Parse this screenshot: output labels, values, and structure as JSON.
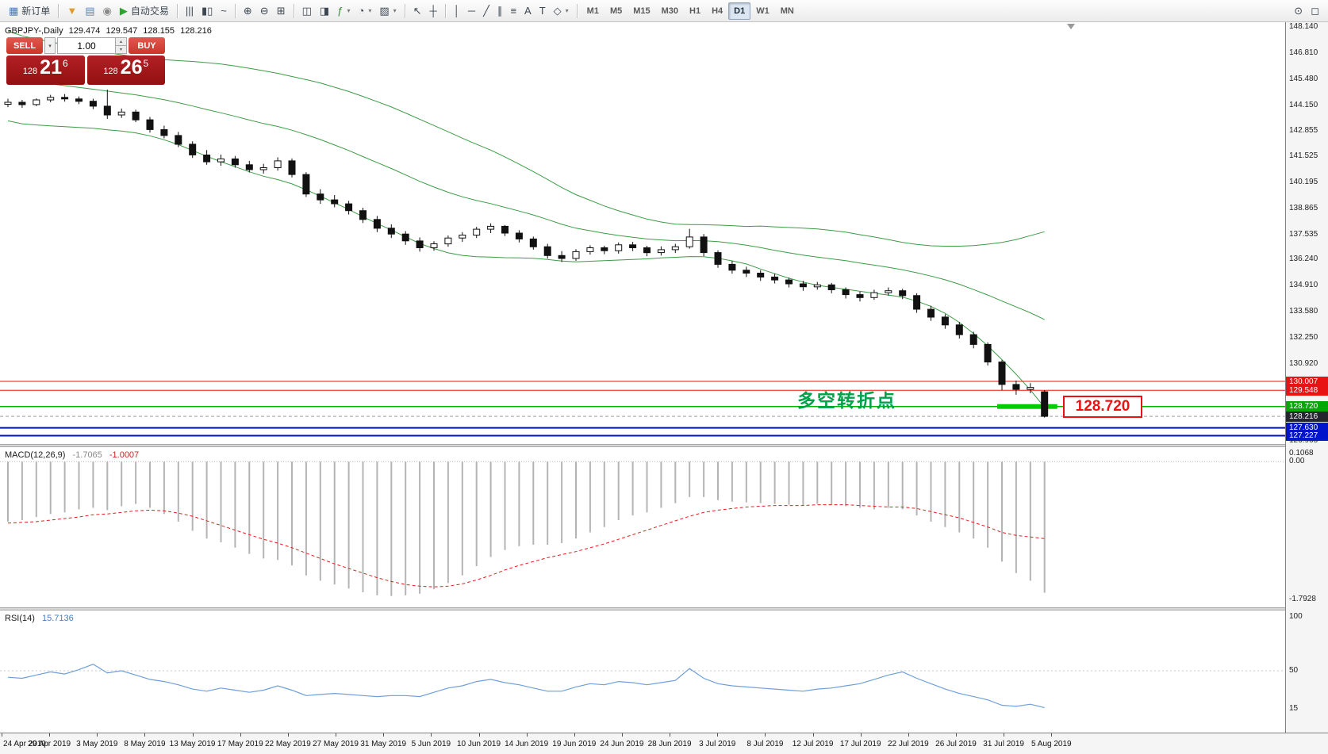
{
  "toolbar": {
    "items": [
      {
        "n": "new-order-button",
        "glyph": "▦",
        "c": "#4a7ab5",
        "label": "新订单"
      },
      {
        "sep": true
      },
      {
        "n": "market-watch-icon",
        "glyph": "▼",
        "c": "#e09a2e"
      },
      {
        "n": "data-window-icon",
        "glyph": "▤",
        "c": "#5a85b5"
      },
      {
        "n": "sound-alerts-icon",
        "glyph": "◉",
        "c": "#8a8a8a"
      },
      {
        "n": "autotrading-button",
        "glyph": "▶",
        "c": "#2ba52b",
        "label": "自动交易"
      },
      {
        "sep": true
      },
      {
        "n": "bar-chart-type-button",
        "glyph": "|||"
      },
      {
        "n": "candlestick-type-button",
        "glyph": "▮▯"
      },
      {
        "n": "line-chart-type-button",
        "glyph": "~"
      },
      {
        "sep": true
      },
      {
        "n": "zoom-in-button",
        "glyph": "⊕"
      },
      {
        "n": "zoom-out-button",
        "glyph": "⊖"
      },
      {
        "n": "tile-windows-button",
        "glyph": "⊞"
      },
      {
        "sep": true
      },
      {
        "n": "arrange-charts-button",
        "glyph": "◫"
      },
      {
        "n": "new-chart-button",
        "glyph": "◨"
      },
      {
        "n": "indicators-button",
        "glyph": "ƒ",
        "c": "#2e8b2e",
        "caret": true
      },
      {
        "n": "periods-button",
        "glyph": "◔",
        "caret": true
      },
      {
        "n": "templates-button",
        "glyph": "▨",
        "caret": true
      },
      {
        "sep": true
      },
      {
        "n": "cursor-button",
        "glyph": "↖"
      },
      {
        "n": "crosshair-button",
        "glyph": "┼"
      },
      {
        "sep": true
      },
      {
        "n": "vertical-line-button",
        "glyph": "│"
      },
      {
        "n": "horizontal-line-button",
        "glyph": "─"
      },
      {
        "n": "trendline-button",
        "glyph": "╱"
      },
      {
        "n": "channel-button",
        "glyph": "∥"
      },
      {
        "n": "fibonacci-button",
        "glyph": "≡"
      },
      {
        "n": "text-button",
        "glyph": "A"
      },
      {
        "n": "text-label-button",
        "glyph": "T"
      },
      {
        "n": "shapes-button",
        "glyph": "◇",
        "caret": true
      },
      {
        "sep": true
      }
    ],
    "timeframes": [
      {
        "label": "M1"
      },
      {
        "label": "M5"
      },
      {
        "label": "M15"
      },
      {
        "label": "M30"
      },
      {
        "label": "H1"
      },
      {
        "label": "H4"
      },
      {
        "label": "D1",
        "active": true
      },
      {
        "label": "W1"
      },
      {
        "label": "MN"
      }
    ],
    "right_items": [
      {
        "n": "search-symbol-button",
        "glyph": "⊙"
      },
      {
        "n": "new-window-button",
        "glyph": "◻"
      }
    ]
  },
  "chart": {
    "title": {
      "symbol_period": "GBPJPY-,Daily",
      "open": "129.474",
      "high": "129.547",
      "low": "128.155",
      "close": "128.216"
    },
    "one_click": {
      "sell_label": "SELL",
      "buy_label": "BUY",
      "volume": "1.00",
      "dropdown_glyph": "▾",
      "spin_up_glyph": "▴",
      "spin_down_glyph": "▾",
      "sell_price": {
        "prefix": "128",
        "big": "21",
        "sup": "6"
      },
      "buy_price": {
        "prefix": "128",
        "big": "26",
        "sup": "5"
      }
    },
    "annotation_text": "多空转折点",
    "annotation_color": "#00a14b",
    "level_box_text": "128.720"
  },
  "chart_data": {
    "type": "candlestick",
    "symbol": "GBPJPY-",
    "period": "Daily",
    "x_labels": [
      "24 Apr 2019",
      "29 Apr 2019",
      "3 May 2019",
      "8 May 2019",
      "13 May 2019",
      "17 May 2019",
      "22 May 2019",
      "27 May 2019",
      "31 May 2019",
      "5 Jun 2019",
      "10 Jun 2019",
      "14 Jun 2019",
      "19 Jun 2019",
      "24 Jun 2019",
      "28 Jun 2019",
      "3 Jul 2019",
      "8 Jul 2019",
      "12 Jul 2019",
      "17 Jul 2019",
      "22 Jul 2019",
      "26 Jul 2019",
      "31 Jul 2019",
      "5 Aug 2019"
    ],
    "y_axis": [
      "148.140",
      "146.810",
      "145.480",
      "144.150",
      "142.855",
      "141.525",
      "140.195",
      "138.865",
      "137.535",
      "136.240",
      "134.910",
      "133.580",
      "132.250",
      "130.920",
      "126.965"
    ],
    "y_tags": [
      {
        "text": "130.007",
        "color": "#e81414"
      },
      {
        "text": "129.548",
        "color": "#e81414"
      },
      {
        "text": "128.720",
        "color": "#00a800"
      },
      {
        "text": "128.216",
        "color": "#23262e"
      },
      {
        "text": "127.630",
        "color": "#0014cc"
      },
      {
        "text": "127.227",
        "color": "#0014cc"
      }
    ],
    "levels": [
      {
        "price": 130.007,
        "color": "#ee1111",
        "width": 1
      },
      {
        "price": 129.548,
        "color": "#ee1111",
        "width": 1
      },
      {
        "price": 128.72,
        "color": "#00b400",
        "width": 1.5
      },
      {
        "price": 128.216,
        "color": "#9aa0a6",
        "width": 1,
        "dash": true
      },
      {
        "price": 127.63,
        "color": "#0011cc",
        "width": 2
      },
      {
        "price": 127.227,
        "color": "#0011cc",
        "width": 2
      }
    ],
    "highlight_segment": {
      "price": 128.72,
      "from_bar": 70,
      "to_bar": 73,
      "color": "#00cc00"
    },
    "ohlc": [
      [
        144.2,
        144.48,
        144.05,
        144.3
      ],
      [
        144.3,
        144.42,
        144.02,
        144.18
      ],
      [
        144.18,
        144.5,
        144.1,
        144.42
      ],
      [
        144.42,
        144.68,
        144.3,
        144.55
      ],
      [
        144.55,
        144.72,
        144.33,
        144.47
      ],
      [
        144.47,
        144.6,
        144.2,
        144.35
      ],
      [
        144.35,
        144.48,
        143.95,
        144.1
      ],
      [
        144.1,
        144.95,
        143.45,
        143.65
      ],
      [
        143.65,
        143.98,
        143.5,
        143.8
      ],
      [
        143.8,
        143.92,
        143.28,
        143.4
      ],
      [
        143.4,
        143.55,
        142.75,
        142.9
      ],
      [
        142.9,
        143.1,
        142.45,
        142.6
      ],
      [
        142.6,
        142.78,
        142.0,
        142.15
      ],
      [
        142.15,
        142.3,
        141.45,
        141.6
      ],
      [
        141.6,
        141.85,
        141.1,
        141.25
      ],
      [
        141.25,
        141.62,
        141.05,
        141.4
      ],
      [
        141.4,
        141.55,
        140.95,
        141.1
      ],
      [
        141.1,
        141.3,
        140.7,
        140.85
      ],
      [
        140.85,
        141.15,
        140.65,
        140.95
      ],
      [
        140.95,
        141.48,
        140.8,
        141.3
      ],
      [
        141.3,
        141.42,
        140.45,
        140.6
      ],
      [
        140.6,
        140.72,
        139.45,
        139.6
      ],
      [
        139.6,
        139.85,
        139.1,
        139.3
      ],
      [
        139.3,
        139.55,
        138.92,
        139.1
      ],
      [
        139.1,
        139.25,
        138.55,
        138.75
      ],
      [
        138.75,
        138.9,
        138.12,
        138.3
      ],
      [
        138.3,
        138.48,
        137.65,
        137.85
      ],
      [
        137.85,
        138.05,
        137.35,
        137.55
      ],
      [
        137.55,
        137.7,
        137.0,
        137.2
      ],
      [
        137.2,
        137.38,
        136.65,
        136.85
      ],
      [
        136.85,
        137.18,
        136.7,
        137.05
      ],
      [
        137.05,
        137.48,
        136.9,
        137.35
      ],
      [
        137.35,
        137.65,
        137.15,
        137.5
      ],
      [
        137.5,
        137.92,
        137.35,
        137.8
      ],
      [
        137.8,
        138.1,
        137.6,
        137.95
      ],
      [
        137.95,
        138.02,
        137.45,
        137.6
      ],
      [
        137.6,
        137.75,
        137.12,
        137.3
      ],
      [
        137.3,
        137.42,
        136.75,
        136.9
      ],
      [
        136.9,
        137.05,
        136.3,
        136.45
      ],
      [
        136.45,
        136.68,
        136.12,
        136.3
      ],
      [
        136.3,
        136.78,
        136.18,
        136.65
      ],
      [
        136.65,
        136.98,
        136.5,
        136.85
      ],
      [
        136.85,
        136.95,
        136.52,
        136.7
      ],
      [
        136.7,
        137.12,
        136.55,
        137.0
      ],
      [
        137.0,
        137.15,
        136.68,
        136.85
      ],
      [
        136.85,
        136.95,
        136.42,
        136.6
      ],
      [
        136.6,
        136.92,
        136.45,
        136.75
      ],
      [
        136.75,
        137.05,
        136.58,
        136.9
      ],
      [
        136.9,
        137.82,
        136.8,
        137.4
      ],
      [
        137.4,
        137.55,
        136.42,
        136.6
      ],
      [
        136.6,
        136.72,
        135.82,
        136.0
      ],
      [
        136.0,
        136.18,
        135.52,
        135.7
      ],
      [
        135.7,
        135.88,
        135.35,
        135.55
      ],
      [
        135.55,
        135.7,
        135.15,
        135.35
      ],
      [
        135.35,
        135.52,
        135.02,
        135.2
      ],
      [
        135.2,
        135.32,
        134.82,
        135.0
      ],
      [
        135.0,
        135.15,
        134.65,
        134.85
      ],
      [
        134.85,
        135.1,
        134.7,
        134.95
      ],
      [
        134.95,
        135.05,
        134.52,
        134.7
      ],
      [
        134.7,
        134.82,
        134.25,
        134.45
      ],
      [
        134.45,
        134.6,
        134.1,
        134.3
      ],
      [
        134.3,
        134.7,
        134.18,
        134.55
      ],
      [
        134.55,
        134.82,
        134.4,
        134.65
      ],
      [
        134.65,
        134.75,
        134.22,
        134.4
      ],
      [
        134.4,
        134.52,
        133.52,
        133.7
      ],
      [
        133.7,
        133.88,
        133.1,
        133.3
      ],
      [
        133.3,
        133.45,
        132.7,
        132.9
      ],
      [
        132.9,
        133.05,
        132.2,
        132.4
      ],
      [
        132.4,
        132.55,
        131.7,
        131.9
      ],
      [
        131.9,
        132.0,
        130.82,
        131.0
      ],
      [
        131.0,
        131.1,
        129.55,
        129.85
      ],
      [
        129.85,
        130.05,
        129.32,
        129.6
      ],
      [
        129.6,
        129.92,
        129.4,
        129.7
      ],
      [
        129.474,
        129.547,
        128.155,
        128.216
      ]
    ],
    "overlays": {
      "bollinger": {
        "color": "#3c9c46",
        "mid": [
          145.65,
          145.45,
          145.34,
          145.24,
          145.15,
          145.06,
          144.97,
          144.87,
          144.78,
          144.68,
          144.56,
          144.43,
          144.28,
          144.11,
          143.93,
          143.76,
          143.58,
          143.39,
          143.21,
          143.06,
          142.87,
          142.64,
          142.39,
          142.11,
          141.83,
          141.52,
          141.21,
          140.91,
          140.58,
          140.25,
          139.96,
          139.69,
          139.46,
          139.27,
          139.11,
          138.92,
          138.73,
          138.53,
          138.3,
          138.05,
          137.85,
          137.72,
          137.59,
          137.48,
          137.39,
          137.3,
          137.25,
          137.21,
          137.22,
          137.21,
          137.16,
          137.08,
          136.98,
          136.86,
          136.72,
          136.59,
          136.47,
          136.37,
          136.28,
          136.19,
          136.07,
          135.96,
          135.85,
          135.72,
          135.57,
          135.4,
          135.21,
          134.98,
          134.71,
          134.43,
          134.12,
          133.82,
          133.52,
          133.17
        ],
        "dev": [
          2.3,
          2.25,
          2.2,
          2.15,
          2.1,
          2.05,
          2.0,
          1.98,
          1.95,
          1.95,
          1.98,
          2.05,
          2.15,
          2.28,
          2.4,
          2.5,
          2.58,
          2.65,
          2.7,
          2.72,
          2.75,
          2.82,
          2.9,
          2.96,
          3.02,
          3.08,
          3.12,
          3.15,
          3.17,
          3.18,
          3.15,
          3.1,
          3.0,
          2.88,
          2.74,
          2.58,
          2.4,
          2.22,
          2.05,
          1.88,
          1.72,
          1.56,
          1.4,
          1.26,
          1.14,
          1.02,
          0.92,
          0.85,
          0.82,
          0.82,
          0.85,
          0.9,
          0.96,
          1.1,
          1.2,
          1.3,
          1.38,
          1.44,
          1.46,
          1.46,
          1.45,
          1.44,
          1.42,
          1.4,
          1.45,
          1.55,
          1.72,
          1.95,
          2.25,
          2.6,
          3.0,
          3.45,
          3.95,
          4.5
        ]
      }
    },
    "indicators": [
      {
        "type": "macd",
        "label": "MACD(12,26,9)",
        "value": "-1.7065",
        "signal_value": "-1.0007",
        "axis": [
          "0.1068",
          "0.00",
          "-1.7928"
        ],
        "hist_color": "#b4b4b4",
        "signal_color": "#e02020",
        "histogram": [
          -0.78,
          -0.76,
          -0.72,
          -0.68,
          -0.66,
          -0.62,
          -0.6,
          -0.63,
          -0.58,
          -0.55,
          -0.6,
          -0.68,
          -0.78,
          -0.9,
          -1.0,
          -1.05,
          -1.12,
          -1.2,
          -1.26,
          -1.28,
          -1.35,
          -1.48,
          -1.55,
          -1.6,
          -1.65,
          -1.7,
          -1.74,
          -1.75,
          -1.74,
          -1.72,
          -1.66,
          -1.58,
          -1.48,
          -1.36,
          -1.24,
          -1.15,
          -1.1,
          -1.08,
          -1.08,
          -1.06,
          -1.0,
          -0.92,
          -0.85,
          -0.76,
          -0.7,
          -0.66,
          -0.6,
          -0.54,
          -0.46,
          -0.46,
          -0.5,
          -0.52,
          -0.53,
          -0.54,
          -0.55,
          -0.56,
          -0.57,
          -0.55,
          -0.56,
          -0.58,
          -0.6,
          -0.62,
          -0.6,
          -0.62,
          -0.7,
          -0.78,
          -0.85,
          -0.92,
          -1.0,
          -1.12,
          -1.3,
          -1.45,
          -1.55,
          -1.7065
        ],
        "signal": [
          -0.8,
          -0.79,
          -0.78,
          -0.76,
          -0.74,
          -0.72,
          -0.69,
          -0.68,
          -0.66,
          -0.64,
          -0.63,
          -0.64,
          -0.67,
          -0.71,
          -0.77,
          -0.83,
          -0.89,
          -0.95,
          -1.01,
          -1.06,
          -1.12,
          -1.19,
          -1.26,
          -1.33,
          -1.39,
          -1.45,
          -1.51,
          -1.56,
          -1.6,
          -1.62,
          -1.63,
          -1.62,
          -1.59,
          -1.54,
          -1.48,
          -1.41,
          -1.35,
          -1.3,
          -1.25,
          -1.21,
          -1.17,
          -1.12,
          -1.07,
          -1.01,
          -0.95,
          -0.89,
          -0.83,
          -0.77,
          -0.71,
          -0.66,
          -0.63,
          -0.61,
          -0.59,
          -0.58,
          -0.57,
          -0.57,
          -0.57,
          -0.56,
          -0.56,
          -0.56,
          -0.57,
          -0.58,
          -0.59,
          -0.59,
          -0.61,
          -0.65,
          -0.69,
          -0.73,
          -0.79,
          -0.85,
          -0.92,
          -0.96,
          -0.98,
          -1.0007
        ]
      },
      {
        "type": "rsi",
        "label": "RSI(14)",
        "value": "15.7136",
        "axis": [
          "100",
          "50",
          "15"
        ],
        "color": "#6f9fd8",
        "level_lines": [
          50
        ],
        "values": [
          44,
          43,
          46,
          49,
          47,
          51,
          56,
          48,
          50,
          46,
          42,
          40,
          37,
          33,
          31,
          34,
          32,
          30,
          32,
          36,
          32,
          27,
          28,
          29,
          28,
          27,
          26,
          27,
          27,
          26,
          30,
          34,
          36,
          40,
          42,
          39,
          37,
          34,
          31,
          31,
          35,
          38,
          37,
          40,
          39,
          37,
          39,
          41,
          52,
          43,
          38,
          36,
          35,
          34,
          33,
          32,
          31,
          33,
          34,
          36,
          38,
          42,
          46,
          49,
          43,
          38,
          33,
          29,
          26,
          23,
          18,
          17,
          19,
          15.7136
        ]
      }
    ]
  }
}
